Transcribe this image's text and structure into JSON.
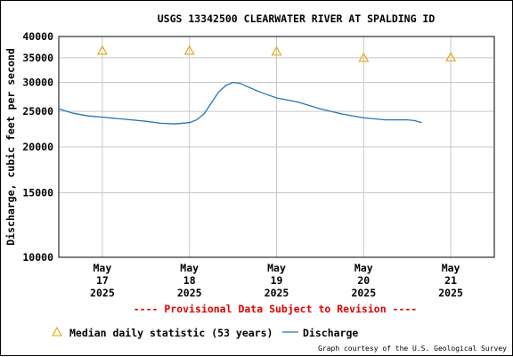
{
  "chart_data": {
    "type": "line",
    "title": "USGS 13342500 CLEARWATER RIVER AT SPALDING ID",
    "ylabel": "Discharge, cubic feet per second",
    "yscale": "log",
    "ylim": [
      10000,
      40000
    ],
    "yticks": [
      10000,
      15000,
      20000,
      25000,
      30000,
      35000,
      40000
    ],
    "ytick_labels": [
      "10000",
      "15000",
      "20000",
      "25000",
      "30000",
      "35000",
      "40000"
    ],
    "xlim": [
      "2025-05-16T12:00",
      "2025-05-21T12:00"
    ],
    "xticks": [
      {
        "x": "2025-05-17",
        "lines": [
          "May",
          "17",
          "2025"
        ]
      },
      {
        "x": "2025-05-18",
        "lines": [
          "May",
          "18",
          "2025"
        ]
      },
      {
        "x": "2025-05-19",
        "lines": [
          "May",
          "19",
          "2025"
        ]
      },
      {
        "x": "2025-05-20",
        "lines": [
          "May",
          "20",
          "2025"
        ]
      },
      {
        "x": "2025-05-21",
        "lines": [
          "May",
          "21",
          "2025"
        ]
      }
    ],
    "grid": true,
    "legend_position": "bottom",
    "series": [
      {
        "name": "Discharge",
        "color": "#1f77b4",
        "style": "line",
        "x": [
          "2025-05-16T12:00",
          "2025-05-16T16:00",
          "2025-05-16T20:00",
          "2025-05-17T00:00",
          "2025-05-17T04:00",
          "2025-05-17T08:00",
          "2025-05-17T12:00",
          "2025-05-17T16:00",
          "2025-05-17T20:00",
          "2025-05-18T00:00",
          "2025-05-18T02:00",
          "2025-05-18T04:00",
          "2025-05-18T06:00",
          "2025-05-18T08:00",
          "2025-05-18T10:00",
          "2025-05-18T12:00",
          "2025-05-18T14:00",
          "2025-05-18T16:00",
          "2025-05-18T18:00",
          "2025-05-18T20:00",
          "2025-05-19T00:00",
          "2025-05-19T06:00",
          "2025-05-19T12:00",
          "2025-05-19T18:00",
          "2025-05-20T00:00",
          "2025-05-20T06:00",
          "2025-05-20T12:00",
          "2025-05-20T14:00",
          "2025-05-20T16:00"
        ],
        "values": [
          25400,
          24700,
          24300,
          24100,
          23900,
          23700,
          23500,
          23200,
          23100,
          23300,
          23700,
          24600,
          26300,
          28200,
          29400,
          30000,
          29800,
          29200,
          28600,
          28100,
          27200,
          26500,
          25400,
          24600,
          24000,
          23700,
          23700,
          23600,
          23300
        ]
      },
      {
        "name": "Median daily statistic (53 years)",
        "color": "#e8a000",
        "style": "triangle",
        "x": [
          "2025-05-17T00:00",
          "2025-05-18T00:00",
          "2025-05-19T00:00",
          "2025-05-20T00:00",
          "2025-05-21T00:00"
        ],
        "values": [
          36600,
          36600,
          36400,
          35000,
          35100
        ]
      }
    ]
  },
  "footer": {
    "provisional_note": "---- Provisional Data Subject to Revision ----",
    "credit": "Graph courtesy of the U.S. Geological Survey"
  },
  "legend": {
    "median_label": "Median daily statistic (53 years)",
    "discharge_label": "Discharge"
  }
}
